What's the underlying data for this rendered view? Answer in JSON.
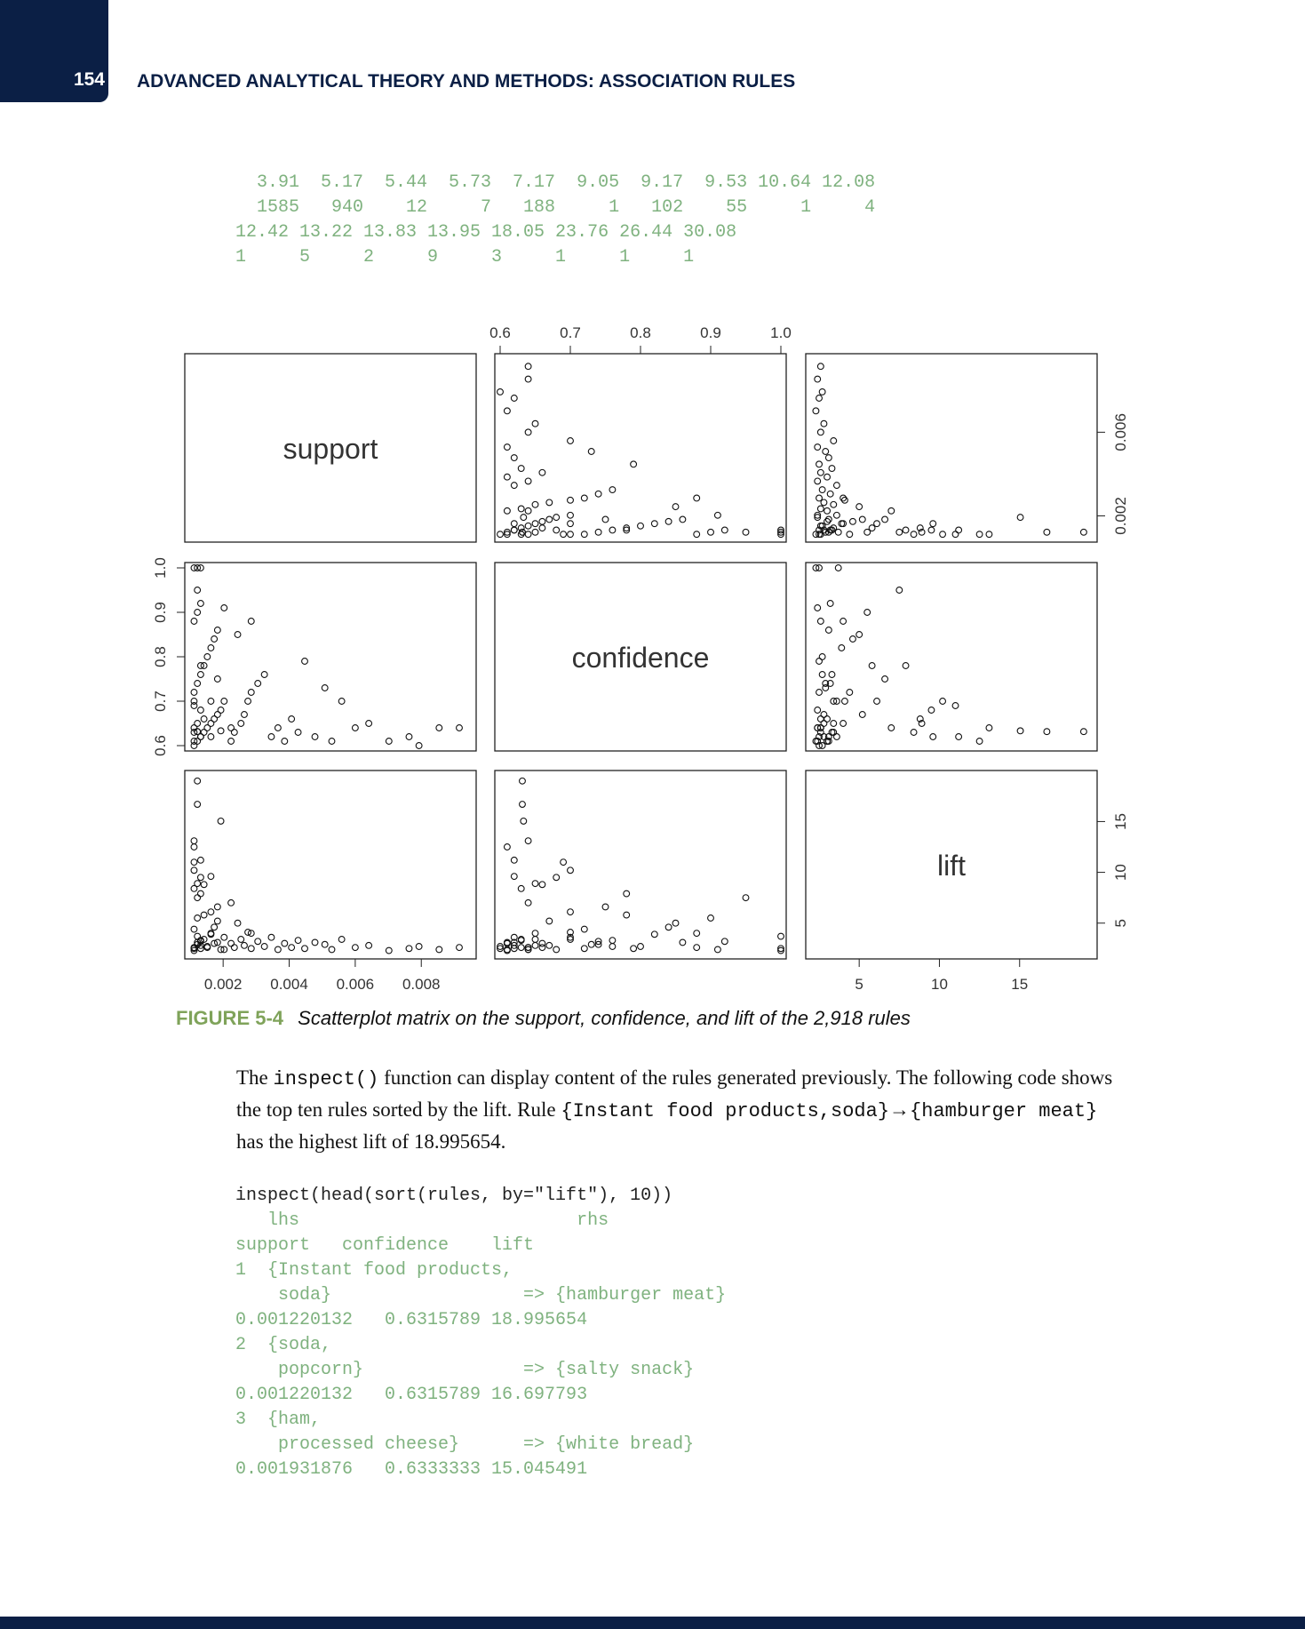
{
  "header": {
    "page_number": "154",
    "running_title": "ADVANCED ANALYTICAL THEORY AND METHODS: ASSOCIATION RULES"
  },
  "top_code": [
    "  3.91  5.17  5.44  5.73  7.17  9.05  9.17  9.53 10.64 12.08",
    "  1585   940    12     7   188     1   102    55     1     4",
    "12.42 13.22 13.83 13.95 18.05 23.76 26.44 30.08",
    "1     5     2     9     3     1     1     1"
  ],
  "chart_data": {
    "type": "scatter",
    "variables": [
      "support",
      "confidence",
      "lift"
    ],
    "axes": {
      "support": {
        "range": [
          0.001,
          0.0095
        ],
        "ticks": [
          "0.002",
          "0.004",
          "0.006",
          "0.008"
        ],
        "tick_values": [
          0.002,
          0.004,
          0.006,
          0.008
        ],
        "right_ticks": [
          "0.002",
          "0.006"
        ],
        "right_tick_values": [
          0.002,
          0.006
        ]
      },
      "confidence": {
        "range": [
          0.6,
          1.0
        ],
        "ticks": [
          "0.6",
          "0.7",
          "0.8",
          "0.9",
          "1.0"
        ],
        "tick_values": [
          0.6,
          0.7,
          0.8,
          0.9,
          1.0
        ]
      },
      "lift": {
        "range": [
          2,
          19.5
        ],
        "ticks": [
          "5",
          "10",
          "15"
        ],
        "tick_values": [
          5,
          10,
          15
        ]
      }
    },
    "points": [
      [
        0.00112,
        0.6,
        2.5
      ],
      [
        0.00122,
        0.61,
        3.1
      ],
      [
        0.00132,
        0.62,
        2.8
      ],
      [
        0.00142,
        0.63,
        3.4
      ],
      [
        0.00152,
        0.64,
        2.6
      ],
      [
        0.00163,
        0.65,
        4.0
      ],
      [
        0.00173,
        0.66,
        3.0
      ],
      [
        0.00183,
        0.67,
        5.2
      ],
      [
        0.00193,
        0.68,
        2.4
      ],
      [
        0.00203,
        0.7,
        3.6
      ],
      [
        0.00112,
        0.72,
        4.4
      ],
      [
        0.00122,
        0.74,
        2.9
      ],
      [
        0.00132,
        0.76,
        3.3
      ],
      [
        0.00142,
        0.78,
        5.8
      ],
      [
        0.00152,
        0.8,
        2.7
      ],
      [
        0.00163,
        0.82,
        3.9
      ],
      [
        0.00173,
        0.84,
        4.6
      ],
      [
        0.00183,
        0.86,
        3.1
      ],
      [
        0.00112,
        0.88,
        2.6
      ],
      [
        0.00122,
        0.9,
        5.5
      ],
      [
        0.00132,
        0.92,
        3.2
      ],
      [
        0.00112,
        1.0,
        2.3
      ],
      [
        0.00122,
        1.0,
        3.7
      ],
      [
        0.00132,
        1.0,
        2.5
      ],
      [
        0.00112,
        0.63,
        8.4
      ],
      [
        0.00122,
        0.65,
        8.9
      ],
      [
        0.00132,
        0.68,
        9.5
      ],
      [
        0.00112,
        0.7,
        10.2
      ],
      [
        0.00122,
        0.6316,
        18.9957
      ],
      [
        0.00122,
        0.6316,
        16.6978
      ],
      [
        0.00193,
        0.6333,
        15.0455
      ],
      [
        0.00112,
        0.61,
        12.5
      ],
      [
        0.00132,
        0.62,
        11.2
      ],
      [
        0.00112,
        0.64,
        13.1
      ],
      [
        0.00224,
        0.61,
        3.0
      ],
      [
        0.00234,
        0.63,
        2.6
      ],
      [
        0.00254,
        0.65,
        3.4
      ],
      [
        0.00264,
        0.67,
        2.8
      ],
      [
        0.00275,
        0.7,
        4.1
      ],
      [
        0.00285,
        0.72,
        2.5
      ],
      [
        0.00305,
        0.74,
        3.2
      ],
      [
        0.00325,
        0.76,
        2.7
      ],
      [
        0.00346,
        0.62,
        3.6
      ],
      [
        0.00366,
        0.64,
        2.4
      ],
      [
        0.00386,
        0.61,
        3.0
      ],
      [
        0.00407,
        0.66,
        2.6
      ],
      [
        0.00427,
        0.63,
        3.3
      ],
      [
        0.00447,
        0.79,
        2.5
      ],
      [
        0.00478,
        0.62,
        3.1
      ],
      [
        0.00508,
        0.73,
        2.9
      ],
      [
        0.00529,
        0.61,
        2.4
      ],
      [
        0.00559,
        0.7,
        3.4
      ],
      [
        0.006,
        0.64,
        2.6
      ],
      [
        0.00641,
        0.65,
        2.8
      ],
      [
        0.00702,
        0.61,
        2.3
      ],
      [
        0.00763,
        0.62,
        2.5
      ],
      [
        0.00793,
        0.6,
        2.7
      ],
      [
        0.00854,
        0.64,
        2.4
      ],
      [
        0.00915,
        0.64,
        2.6
      ],
      [
        0.00285,
        0.88,
        4.0
      ],
      [
        0.00203,
        0.91,
        2.4
      ],
      [
        0.00244,
        0.85,
        5.0
      ],
      [
        0.00163,
        0.7,
        6.1
      ],
      [
        0.00183,
        0.75,
        6.6
      ],
      [
        0.00224,
        0.64,
        7.0
      ],
      [
        0.00122,
        0.95,
        7.5
      ],
      [
        0.00132,
        0.78,
        7.9
      ],
      [
        0.00142,
        0.66,
        8.8
      ],
      [
        0.00163,
        0.62,
        9.6
      ],
      [
        0.00112,
        0.69,
        11.0
      ]
    ]
  },
  "figure": {
    "label": "FIGURE 5-4",
    "caption": "Scatterplot matrix on the support, confidence, and lift of the 2,918 rules"
  },
  "paragraph": {
    "p1": "The ",
    "c1": "inspect()",
    "p2": " function can display content of the rules generated previously. The following code shows the top ten rules sorted by the lift. Rule ",
    "c2": "{Instant food products,soda}",
    "p3": "→",
    "c3": "{hamburger meat}",
    "p4": " has the highest lift of 18.995654."
  },
  "code_block": {
    "command": "inspect(head(sort(rules, by=\"lift\"), 10))",
    "lines": [
      "   lhs                          rhs",
      "support   confidence    lift",
      "1  {Instant food products,",
      "    soda}                  => {hamburger meat}",
      "0.001220132   0.6315789 18.995654",
      "2  {soda,",
      "    popcorn}               => {salty snack}",
      "0.001220132   0.6315789 16.697793",
      "3  {ham,",
      "    processed cheese}      => {white bread}",
      "0.001931876   0.6333333 15.045491"
    ]
  },
  "colors": {
    "navy": "#0b1f45",
    "code_green": "#7fb27f",
    "caption_green": "#7fa35a"
  }
}
